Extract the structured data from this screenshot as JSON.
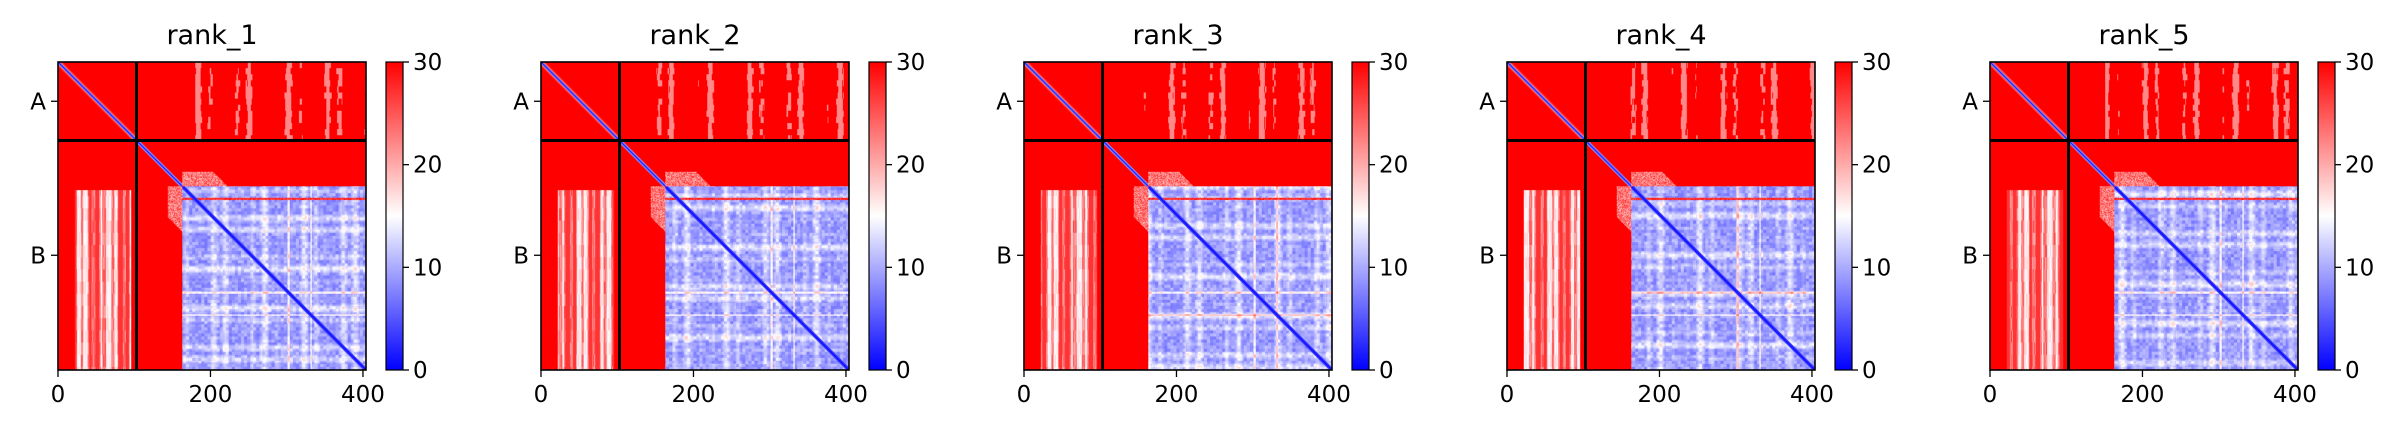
{
  "chart_data": [
    {
      "type": "heatmap",
      "title": "rank_1",
      "x_ticks": [
        0,
        200,
        400
      ],
      "xlim": [
        0,
        404
      ],
      "y_ticks": [
        "A",
        "B"
      ],
      "chain_labels": [
        "A",
        "B"
      ],
      "chain_boundary": 103,
      "colorbar": {
        "range": [
          0,
          30
        ],
        "ticks": [
          0,
          10,
          20,
          30
        ],
        "colormap": "bwr"
      }
    },
    {
      "type": "heatmap",
      "title": "rank_2",
      "x_ticks": [
        0,
        200,
        400
      ],
      "xlim": [
        0,
        404
      ],
      "y_ticks": [
        "A",
        "B"
      ],
      "chain_labels": [
        "A",
        "B"
      ],
      "chain_boundary": 103,
      "colorbar": {
        "range": [
          0,
          30
        ],
        "ticks": [
          0,
          10,
          20,
          30
        ],
        "colormap": "bwr"
      }
    },
    {
      "type": "heatmap",
      "title": "rank_3",
      "x_ticks": [
        0,
        200,
        400
      ],
      "xlim": [
        0,
        404
      ],
      "y_ticks": [
        "A",
        "B"
      ],
      "chain_labels": [
        "A",
        "B"
      ],
      "chain_boundary": 103,
      "colorbar": {
        "range": [
          0,
          30
        ],
        "ticks": [
          0,
          10,
          20,
          30
        ],
        "colormap": "bwr"
      }
    },
    {
      "type": "heatmap",
      "title": "rank_4",
      "x_ticks": [
        0,
        200,
        400
      ],
      "xlim": [
        0,
        404
      ],
      "y_ticks": [
        "A",
        "B"
      ],
      "chain_labels": [
        "A",
        "B"
      ],
      "chain_boundary": 103,
      "colorbar": {
        "range": [
          0,
          30
        ],
        "ticks": [
          0,
          10,
          20,
          30
        ],
        "colormap": "bwr"
      }
    },
    {
      "type": "heatmap",
      "title": "rank_5",
      "x_ticks": [
        0,
        200,
        400
      ],
      "xlim": [
        0,
        404
      ],
      "y_ticks": [
        "A",
        "B"
      ],
      "chain_labels": [
        "A",
        "B"
      ],
      "chain_boundary": 103,
      "colorbar": {
        "range": [
          0,
          30
        ],
        "ticks": [
          0,
          10,
          20,
          30
        ],
        "colormap": "bwr"
      }
    }
  ]
}
